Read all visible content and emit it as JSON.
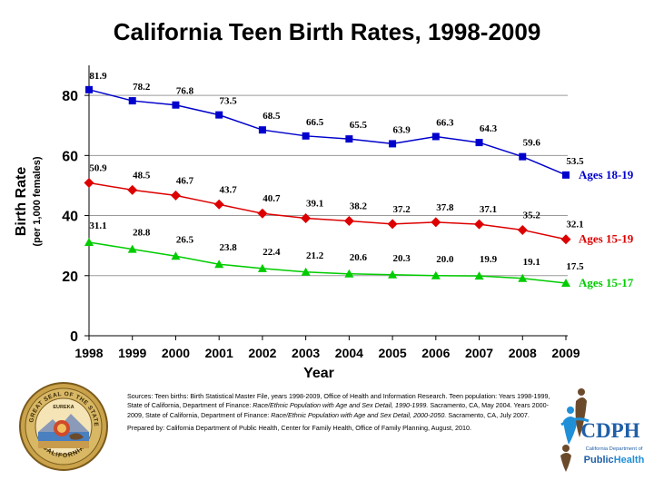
{
  "chart_data": {
    "type": "line",
    "title": "California Teen Birth Rates, 1998-2009",
    "xlabel": "Year",
    "ylabel": "Birth Rate",
    "ylabel_sub": "(per 1,000 females)",
    "categories": [
      "1998",
      "1999",
      "2000",
      "2001",
      "2002",
      "2003",
      "2004",
      "2005",
      "2006",
      "2007",
      "2008",
      "2009"
    ],
    "yticks": [
      0,
      20,
      40,
      60,
      80
    ],
    "ylim": [
      0,
      90
    ],
    "grid": "horizontal",
    "series": [
      {
        "name": "Ages 18-19",
        "color": "#0000cc",
        "marker": "square",
        "values": [
          81.9,
          78.2,
          76.8,
          73.5,
          68.5,
          66.5,
          65.5,
          63.9,
          66.3,
          64.3,
          59.6,
          53.5
        ]
      },
      {
        "name": "Ages 15-19",
        "color": "#dd0000",
        "marker": "diamond",
        "values": [
          50.9,
          48.5,
          46.7,
          43.7,
          40.7,
          39.1,
          38.2,
          37.2,
          37.8,
          37.1,
          35.2,
          32.1
        ]
      },
      {
        "name": "Ages 15-17",
        "color": "#00cc00",
        "marker": "triangle",
        "values": [
          31.1,
          28.8,
          26.5,
          23.8,
          22.4,
          21.2,
          20.6,
          20.3,
          20.0,
          19.9,
          19.1,
          17.5
        ]
      }
    ]
  },
  "sources": {
    "p1_a": "Sources:  Teen births: Birth Statistical Master File, years 1998-2009, Office of Health and Information Research.  Teen population:  Years 1998-1999, State of California, Department of Finance:  ",
    "p1_b": "Race/Ethnic Population with Age and Sex Detail, 1990-1999.",
    "p1_c": "  Sacramento, CA, May 2004.  Years 2000-2009, State of California, Department of Finance:  ",
    "p1_d": "Race/Ethnic Population with Age and Sex Detail, 2000-2050.",
    "p1_e": "  Sacramento, CA, July 2007.",
    "p2": "Prepared by:  California Department of Public Health, Center for Family Health, Office of Family Planning, August, 2010."
  },
  "seal": {
    "top_text": "THE GREAT SEAL OF THE STATE OF",
    "bottom_text": "CALIFORNIA",
    "motto": "EUREKA"
  },
  "logo": {
    "acronym": "CDPH",
    "line1": "California Department of",
    "line2_a": "Public",
    "line2_b": "Health"
  },
  "colors": {
    "series1": "#0000cc",
    "series2": "#dd0000",
    "series3": "#00cc00",
    "grid": "#9a9a9a",
    "logo_blue": "#1f5fa8",
    "logo_brown": "#6b4a2b"
  }
}
